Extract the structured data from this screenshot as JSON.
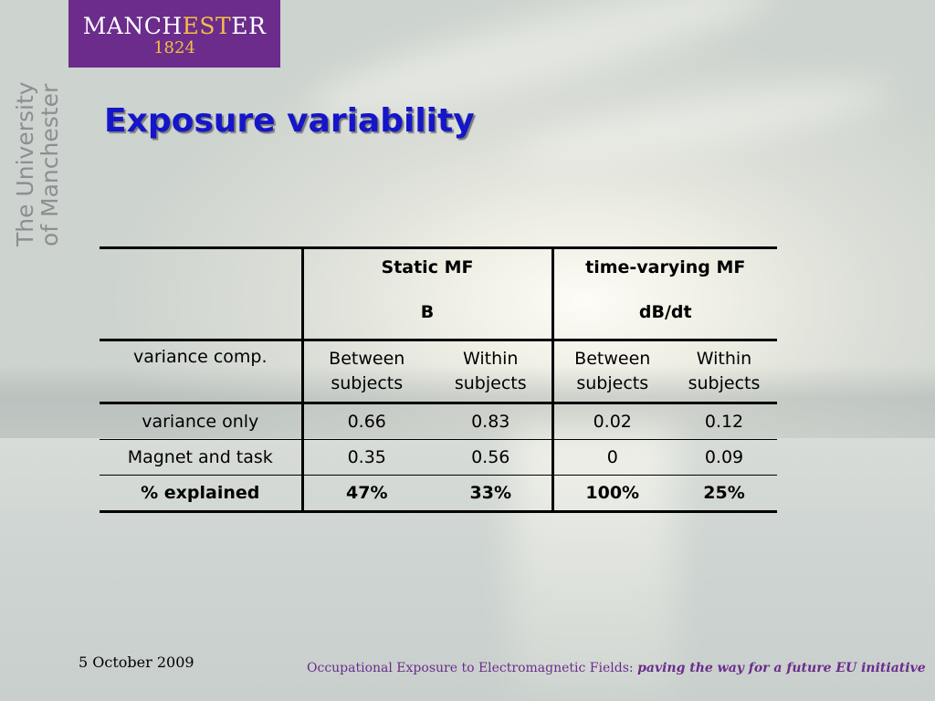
{
  "logo": {
    "word_a": "MANCH",
    "word_est": "EST",
    "word_b": "ER",
    "year": "1824"
  },
  "side": {
    "line1": "The University",
    "line2": "of Manchester"
  },
  "title": "Exposure variability",
  "table": {
    "group_headers": [
      "Static MF",
      "time-varying MF"
    ],
    "unit_headers": [
      "B",
      "dB/dt"
    ],
    "component_label": "variance comp.",
    "component_cols": [
      "Between subjects",
      "Within subjects",
      "Between subjects",
      "Within subjects"
    ],
    "rows": [
      {
        "label": "variance only",
        "values": [
          "0.66",
          "0.83",
          "0.02",
          "0.12"
        ]
      },
      {
        "label": "Magnet and task",
        "values": [
          "0.35",
          "0.56",
          "0",
          "0.09"
        ]
      },
      {
        "label": "% explained",
        "values": [
          "47%",
          "33%",
          "100%",
          "25%"
        ]
      }
    ]
  },
  "footer": {
    "date": "5 October 2009",
    "conference": "Occupational Exposure to Electromagnetic Fields:",
    "tagline": "paving the way for a future EU initiative"
  },
  "colors": {
    "title": "#1515c9",
    "brand_purple": "#6b2c8b",
    "brand_gold": "#f6bd46"
  }
}
